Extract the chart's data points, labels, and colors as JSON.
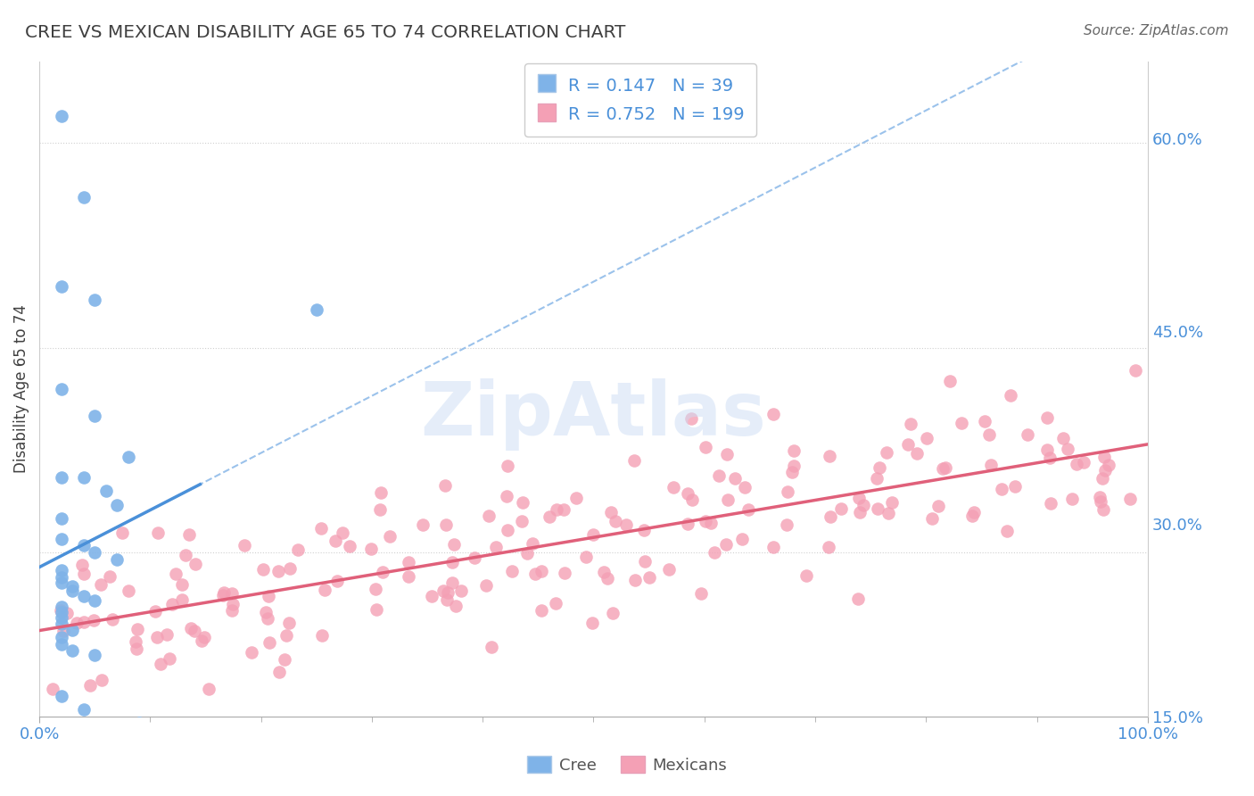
{
  "title": "CREE VS MEXICAN DISABILITY AGE 65 TO 74 CORRELATION CHART",
  "source": "Source: ZipAtlas.com",
  "ylabel": "Disability Age 65 to 74",
  "xlim": [
    0.0,
    1.0
  ],
  "ylim": [
    0.18,
    0.66
  ],
  "yticks": [
    0.15,
    0.3,
    0.45,
    0.6
  ],
  "ytick_labels": [
    "15.0%",
    "30.0%",
    "45.0%",
    "60.0%"
  ],
  "xtick_labels": [
    "0.0%",
    "100.0%"
  ],
  "watermark": "ZipAtlas",
  "cree_R": 0.147,
  "cree_N": 39,
  "mexican_R": 0.752,
  "mexican_N": 199,
  "cree_color": "#7fb3e8",
  "mexican_color": "#f4a0b5",
  "cree_line_color": "#4a90d9",
  "mexican_line_color": "#e0607a",
  "dashed_line_color": "#8ab8e8",
  "background_color": "#ffffff",
  "grid_color": "#d0d0d0",
  "title_color": "#404040",
  "axis_tick_color": "#4a90d9",
  "legend_color": "#4a90d9"
}
